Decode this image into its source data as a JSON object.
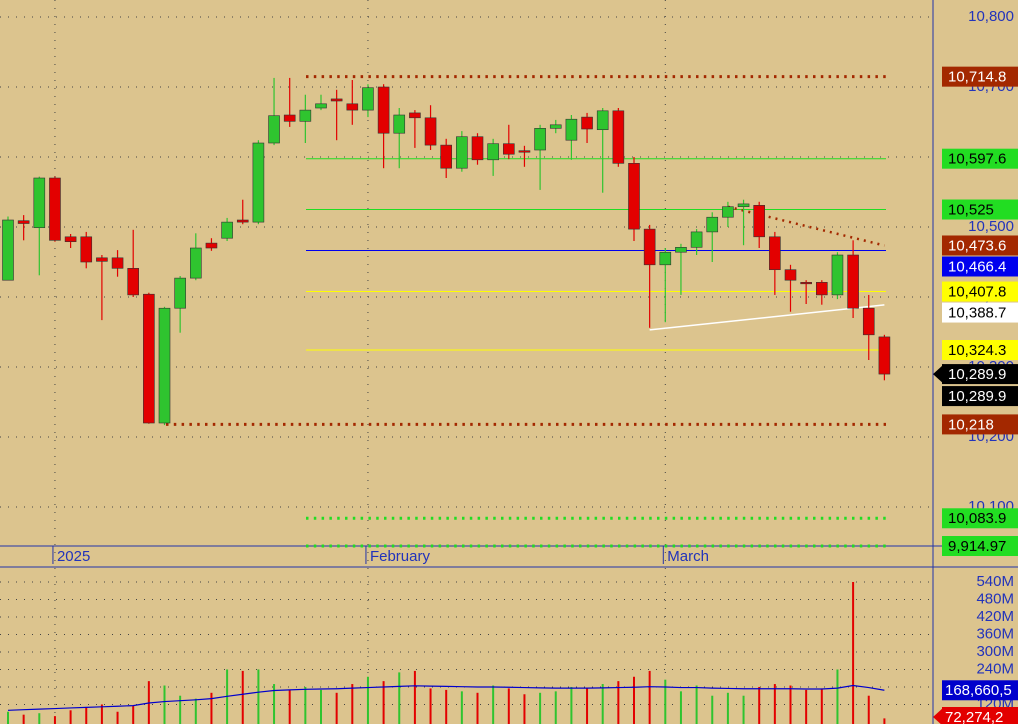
{
  "chart_data": {
    "type": "candlestick",
    "categories": [
      null,
      null,
      null,
      "2025",
      null,
      null,
      null,
      null,
      null,
      null,
      null,
      null,
      null,
      null,
      null,
      null,
      null,
      null,
      null,
      null,
      null,
      null,
      null,
      "February",
      null,
      null,
      null,
      null,
      null,
      null,
      null,
      null,
      null,
      null,
      null,
      null,
      null,
      null,
      null,
      null,
      null,
      null,
      "March",
      null,
      null,
      null,
      null,
      null,
      null,
      null,
      null,
      null,
      null,
      null,
      null,
      null,
      null
    ],
    "open": [
      10424,
      10509,
      10499,
      10570,
      10486,
      10486,
      10456,
      10456,
      10441,
      10404,
      10220,
      10384,
      10427,
      10477,
      10484,
      10510,
      10507,
      10620,
      10660,
      10651,
      10670,
      10683,
      10676,
      10667,
      10700,
      10634,
      10663,
      10656,
      10617,
      10584,
      10629,
      10596,
      10619,
      10609,
      10610,
      10641,
      10624,
      10657,
      10639,
      10666,
      10591,
      10497,
      10446,
      10464,
      10471,
      10493,
      10514,
      10529,
      10531,
      10486,
      10439,
      10421,
      10421,
      10403,
      10460,
      10384,
      10343
    ],
    "high": [
      10515,
      10517,
      10572,
      10572,
      10490,
      10493,
      10460,
      10467,
      10496,
      10406,
      10386,
      10430,
      10491,
      10484,
      10513,
      10539,
      10624,
      10713,
      10713,
      10689,
      10689,
      10696,
      10710,
      10704,
      10704,
      10670,
      10667,
      10674,
      10626,
      10637,
      10634,
      10626,
      10646,
      10616,
      10646,
      10653,
      10660,
      10663,
      10670,
      10670,
      10600,
      10503,
      10470,
      10476,
      10497,
      10521,
      10536,
      10539,
      10536,
      10493,
      10446,
      10424,
      10424,
      10464,
      10481,
      10403,
      10346
    ],
    "low": [
      10424,
      10481,
      10431,
      10479,
      10470,
      10441,
      10367,
      10429,
      10400,
      10219,
      10217,
      10349,
      10424,
      10466,
      10480,
      10504,
      10504,
      10617,
      10643,
      10620,
      10667,
      10624,
      10646,
      10657,
      10584,
      10584,
      10613,
      10610,
      10570,
      10579,
      10589,
      10573,
      10597,
      10586,
      10553,
      10634,
      10596,
      10620,
      10549,
      10586,
      10480,
      10356,
      10364,
      10403,
      10460,
      10450,
      10500,
      10474,
      10470,
      10403,
      10379,
      10390,
      10389,
      10397,
      10370,
      10310,
      10281
    ],
    "close": [
      10510,
      10505,
      10570,
      10481,
      10479,
      10450,
      10451,
      10441,
      10403,
      10220,
      10384,
      10427,
      10470,
      10470,
      10507,
      10507,
      10620,
      10659,
      10651,
      10667,
      10676,
      10680,
      10667,
      10699,
      10634,
      10660,
      10656,
      10617,
      10584,
      10629,
      10596,
      10619,
      10604,
      10607,
      10641,
      10646,
      10654,
      10640,
      10666,
      10591,
      10497,
      10446,
      10464,
      10471,
      10493,
      10514,
      10529,
      10533,
      10486,
      10439,
      10424,
      10419,
      10403,
      10460,
      10384,
      10346,
      10289.9
    ],
    "up_color": "#2fc42f",
    "down_color": "#e30000",
    "ylim": [
      10044.3,
      10824.3
    ],
    "yticks": [
      {
        "value": 10100,
        "label": "10,100"
      },
      {
        "value": 10200,
        "label": "10,200"
      },
      {
        "value": 10300,
        "label": "10,300"
      },
      {
        "value": 10400,
        "label": "10,400"
      },
      {
        "value": 10500,
        "label": "10,500"
      },
      {
        "value": 10600,
        "label": "10,600"
      },
      {
        "value": 10700,
        "label": "10,700"
      },
      {
        "value": 10800,
        "label": "10,800"
      }
    ],
    "grid": true,
    "levels": [
      {
        "value": 10714.8,
        "label": "10,714.8",
        "color": "#a32800",
        "text_color": "#ffffff",
        "style": "dotted"
      },
      {
        "value": 10597.6,
        "label": "10,597.6",
        "color": "#22dd22",
        "text_color": "#000000",
        "style": "solid"
      },
      {
        "value": 10525,
        "label": "10,525",
        "color": "#22dd22",
        "text_color": "#000000",
        "style": "solid"
      },
      {
        "value": 10466.4,
        "label": "10,466.4",
        "color": "#0000ee",
        "text_color": "#ffffff",
        "style": "solid"
      },
      {
        "value": 10407.8,
        "label": "10,407.8",
        "color": "#ffff00",
        "text_color": "#000000",
        "style": "solid"
      },
      {
        "value": 10324.3,
        "label": "10,324.3",
        "color": "#ffff00",
        "text_color": "#000000",
        "style": "solid"
      },
      {
        "value": 10218,
        "label": "10,218",
        "color": "#a32800",
        "text_color": "#ffffff",
        "style": "dotted"
      },
      {
        "value": 10083.9,
        "label": "10,083.9",
        "color": "#22dd22",
        "text_color": "#000000",
        "style": "dotted"
      },
      {
        "value": 9914.97,
        "label": "9,914.97",
        "color": "#22dd22",
        "text_color": "#000000",
        "style": "dotted"
      }
    ],
    "trendlines": [
      {
        "start": 10529,
        "end": 10473.6,
        "end_label": "10,473.6",
        "color": "#a32800",
        "text_color": "#ffffff"
      },
      {
        "start": 10353,
        "end": 10388.7,
        "end_label": "10,388.7",
        "color": "#ffffff",
        "text_color": "#000000"
      }
    ],
    "last_price": [
      {
        "value": 10289.9,
        "label": "10,289.9"
      },
      {
        "value": 10289.9,
        "label": "10,289.9"
      }
    ],
    "volume": {
      "values": [
        95,
        85,
        90,
        80,
        100,
        110,
        120,
        95,
        115,
        200,
        185,
        150,
        140,
        160,
        240,
        235,
        240,
        190,
        170,
        180,
        170,
        160,
        190,
        215,
        200,
        230,
        235,
        175,
        170,
        165,
        160,
        185,
        175,
        155,
        160,
        165,
        180,
        175,
        190,
        200,
        215,
        235,
        205,
        165,
        185,
        150,
        160,
        150,
        180,
        190,
        185,
        170,
        175,
        240,
        540,
        150,
        72.2742
      ],
      "last_label": "72,274,2",
      "ma": [
        100,
        102,
        104,
        106,
        108,
        110,
        112,
        114,
        116,
        125,
        130,
        133,
        136,
        140,
        148,
        155,
        162,
        168,
        170,
        172,
        173,
        174,
        176,
        178,
        180,
        182,
        184,
        183,
        182,
        181,
        180,
        180,
        179,
        178,
        177,
        176,
        176,
        176,
        177,
        178,
        179,
        181,
        180,
        178,
        178,
        176,
        175,
        174,
        174,
        174,
        174,
        173,
        173,
        176,
        185,
        178,
        168.6605
      ],
      "ma_label": "168,660,5",
      "ma_color": "#0000cc",
      "ylim": [
        53,
        588
      ],
      "yticks": [
        {
          "value": 120,
          "label": "120M"
        },
        {
          "value": 180,
          "label": "180M"
        },
        {
          "value": 240,
          "label": "240M"
        },
        {
          "value": 300,
          "label": "300M"
        },
        {
          "value": 360,
          "label": "360M"
        },
        {
          "value": 420,
          "label": "420M"
        },
        {
          "value": 480,
          "label": "480M"
        },
        {
          "value": 540,
          "label": "540M"
        }
      ]
    }
  }
}
